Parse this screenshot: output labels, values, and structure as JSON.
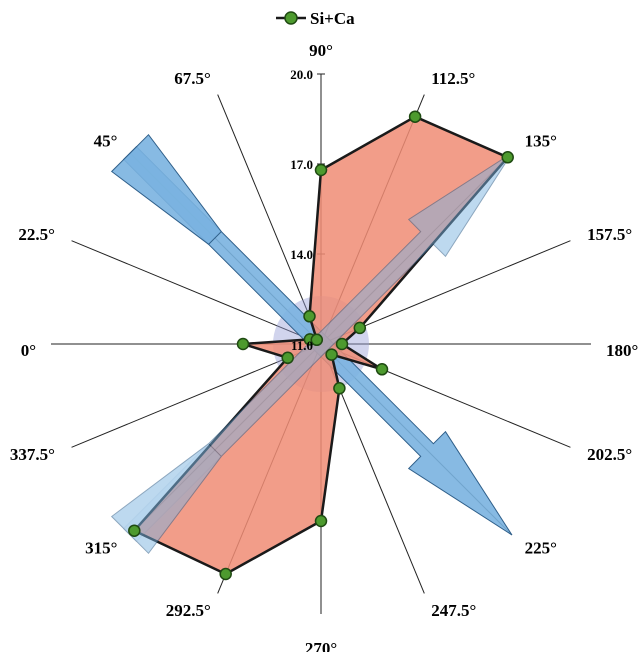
{
  "chart_data": {
    "type": "radar",
    "legend": {
      "label": "Si+Ca",
      "position": "top-center"
    },
    "angle_labels": [
      "0°",
      "22.5°",
      "45°",
      "67.5°",
      "90°",
      "112.5°",
      "135°",
      "157.5°",
      "180°",
      "202.5°",
      "225°",
      "247.5°",
      "270°",
      "292.5°",
      "315°",
      "337.5°"
    ],
    "angles_deg": [
      0,
      22.5,
      45,
      67.5,
      90,
      112.5,
      135,
      157.5,
      180,
      202.5,
      225,
      247.5,
      270,
      292.5,
      315,
      337.5
    ],
    "radial_ticks": [
      "11.0",
      "14.0",
      "17.0",
      "20.0"
    ],
    "rlim": [
      11,
      20
    ],
    "series": [
      {
        "name": "Si+Ca",
        "values": [
          13.6,
          11.4,
          11.2,
          12.0,
          16.8,
          19.2,
          19.8,
          12.4,
          11.7,
          13.2,
          11.5,
          12.6,
          16.9,
          19.3,
          19.8,
          12.2
        ]
      }
    ],
    "arrows": [
      {
        "from_angle": 45,
        "to_angle": 225
      },
      {
        "from_angle": 315,
        "to_angle": 135
      }
    ],
    "colors": {
      "fill": "#f08c74",
      "outline": "#1a1a1a",
      "marker": "#4d9a2e",
      "marker_edge": "#1f4a12",
      "arrow": "#7ab2e0",
      "arrow_edge": "#2f5f8a",
      "circle": "#9aa0d8"
    }
  }
}
